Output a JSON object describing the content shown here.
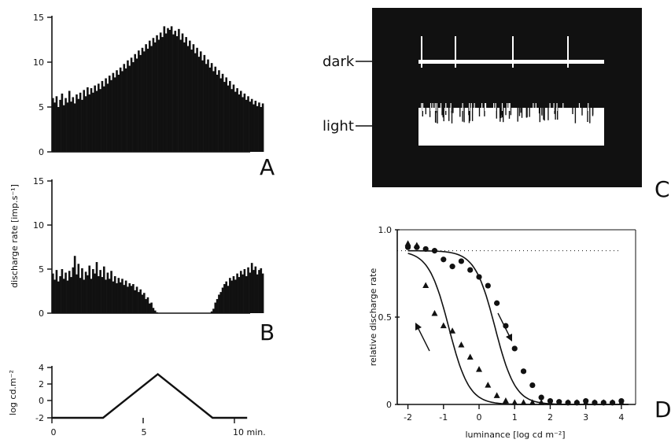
{
  "panels": {
    "A": {
      "letter": "A"
    },
    "B": {
      "letter": "B"
    },
    "C": {
      "letter": "C",
      "dark_label": "dark",
      "light_label": "light"
    },
    "D": {
      "letter": "D"
    }
  },
  "hist_ylabel": "discharge rate  [imp.s⁻¹]",
  "stim_ylabel": "log cd.m⁻²",
  "time_ticks": [
    "0",
    "5",
    "10 min."
  ],
  "colors": {
    "ink": "#111111",
    "scope_bg": "#111111",
    "trace": "#ffffff"
  },
  "chart_data": [
    {
      "id": "A",
      "type": "bar",
      "xlabel": "",
      "ylabel": "discharge rate [imp.s⁻¹]",
      "xlim": [
        0,
        11
      ],
      "ylim": [
        0,
        15
      ],
      "yticks": [
        "0",
        "5",
        "10",
        "15"
      ],
      "x_start": 0,
      "bin_width_min": 0.1,
      "values": [
        6,
        5.5,
        6.2,
        5,
        5.8,
        6.5,
        5.2,
        6,
        5.5,
        6.8,
        5.6,
        6.1,
        5.4,
        6.4,
        5.9,
        6.6,
        5.8,
        6.9,
        6.2,
        7.2,
        6.4,
        7.1,
        6.6,
        7.4,
        6.8,
        7.6,
        7,
        7.9,
        7.3,
        8.2,
        7.6,
        8.5,
        8,
        8.8,
        8.3,
        9.1,
        8.6,
        9.4,
        9,
        9.8,
        9.3,
        10.2,
        9.6,
        10.5,
        10,
        10.9,
        10.4,
        11.3,
        10.8,
        11.6,
        11.2,
        12,
        11.5,
        12.4,
        11.8,
        12.7,
        12.2,
        13,
        12.5,
        13.3,
        12.8,
        14,
        13.2,
        13.8,
        13.6,
        14,
        13.1,
        13.5,
        12.9,
        13.7,
        12.5,
        13.2,
        12.2,
        12.8,
        11.8,
        12.4,
        11.4,
        12,
        11,
        11.6,
        10.6,
        11.2,
        10.2,
        10.8,
        9.8,
        10.3,
        9.4,
        9.9,
        9,
        9.5,
        8.6,
        9.1,
        8.2,
        8.7,
        7.8,
        8.3,
        7.4,
        7.9,
        7,
        7.5,
        6.7,
        7.1,
        6.4,
        6.8,
        6.1,
        6.5,
        5.8,
        6.2,
        5.6,
        5.9,
        5.3,
        5.7,
        5.1,
        5.5,
        5,
        5.4
      ]
    },
    {
      "id": "B",
      "type": "bar",
      "xlabel": "",
      "ylabel": "discharge rate [imp.s⁻¹]",
      "xlim": [
        0,
        11
      ],
      "ylim": [
        0,
        15
      ],
      "yticks": [
        "0",
        "5",
        "10",
        "15"
      ],
      "x_start": 0,
      "bin_width_min": 0.1,
      "values": [
        4.5,
        3.8,
        4.9,
        3.6,
        4.2,
        5,
        3.9,
        4.6,
        3.7,
        4.8,
        4.1,
        5.2,
        6.5,
        4.4,
        5.6,
        4,
        5.1,
        3.8,
        4.7,
        4.3,
        5.4,
        3.9,
        5,
        4.5,
        5.8,
        4.2,
        4.9,
        4.1,
        5.3,
        3.8,
        4.6,
        3.9,
        4.8,
        3.6,
        4.2,
        3.4,
        4,
        3.5,
        3.9,
        3.2,
        3.7,
        3,
        3.4,
        3.1,
        3.3,
        2.6,
        3,
        2.4,
        2.7,
        2.1,
        2.3,
        1.6,
        1.8,
        1.1,
        1.2,
        0.6,
        0.3,
        0.1,
        0,
        0,
        0,
        0,
        0,
        0,
        0,
        0,
        0,
        0,
        0,
        0,
        0,
        0,
        0,
        0,
        0,
        0,
        0,
        0,
        0,
        0,
        0,
        0,
        0,
        0,
        0,
        0,
        0,
        0.2,
        0.5,
        1.2,
        1.6,
        2.1,
        2.4,
        2.9,
        3.3,
        3.6,
        3.1,
        4,
        3.7,
        4.2,
        3.8,
        4.5,
        4.1,
        4.8,
        4.4,
        5,
        4.2,
        5.2,
        4.6,
        5.7,
        4.9,
        5.3,
        4.4,
        4.9,
        5.1,
        4.5
      ]
    },
    {
      "id": "stimulus",
      "type": "line",
      "xlabel": "",
      "ylabel": "log cd.m⁻²",
      "xlim": [
        0,
        11
      ],
      "ylim": [
        -2,
        4
      ],
      "xticks": [
        "0",
        "5",
        "10 min."
      ],
      "yticks": [
        "-2",
        "0",
        "2",
        "4"
      ],
      "x": [
        0,
        2.8,
        5.8,
        8.8,
        10.7
      ],
      "y": [
        -2,
        -2,
        3.2,
        -2,
        -2
      ]
    },
    {
      "id": "D",
      "type": "scatter",
      "xlabel": "luminance  [log cd m⁻²]",
      "ylabel": "relative discharge rate",
      "xlim": [
        -2.3,
        4.4
      ],
      "ylim": [
        0,
        1
      ],
      "xticks": [
        "-2",
        "-1",
        "0",
        "1",
        "2",
        "3",
        "4"
      ],
      "yticks": [
        "0",
        "0.5",
        "1.0"
      ],
      "series": [
        {
          "marker": "circle",
          "x": [
            -2,
            -1.75,
            -1.5,
            -1.25,
            -1,
            -0.75,
            -0.5,
            -0.25,
            0,
            0.25,
            0.5,
            0.75,
            1,
            1.25,
            1.5,
            1.75,
            2,
            2.25,
            2.5,
            2.75,
            3,
            3.25,
            3.5,
            3.75,
            4
          ],
          "y": [
            0.9,
            0.9,
            0.89,
            0.88,
            0.83,
            0.79,
            0.82,
            0.77,
            0.73,
            0.68,
            0.58,
            0.45,
            0.32,
            0.19,
            0.11,
            0.04,
            0.02,
            0.015,
            0.01,
            0.01,
            0.02,
            0.01,
            0.01,
            0.01,
            0.02
          ]
        },
        {
          "marker": "triangle",
          "x": [
            -2,
            -1.75,
            -1.5,
            -1.25,
            -1,
            -0.75,
            -0.5,
            -0.25,
            0,
            0.25,
            0.5,
            0.75,
            1,
            1.25,
            1.5,
            1.75,
            2,
            2.25,
            2.5,
            2.75,
            3,
            3.25,
            3.5,
            3.75,
            4
          ],
          "y": [
            0.92,
            0.91,
            0.68,
            0.52,
            0.45,
            0.42,
            0.34,
            0.27,
            0.2,
            0.11,
            0.05,
            0.02,
            0.01,
            0.01,
            0.01,
            0.01,
            0.01,
            0.01,
            0.01,
            0.01,
            0.01,
            0.01,
            0.01,
            0.01,
            0.01
          ]
        }
      ],
      "fit_curves": [
        {
          "x50": 0.45,
          "top": 0.88,
          "slope": 1.6
        },
        {
          "x50": -0.85,
          "top": 0.88,
          "slope": 1.6
        }
      ],
      "dotted_line_y": 0.88
    }
  ]
}
